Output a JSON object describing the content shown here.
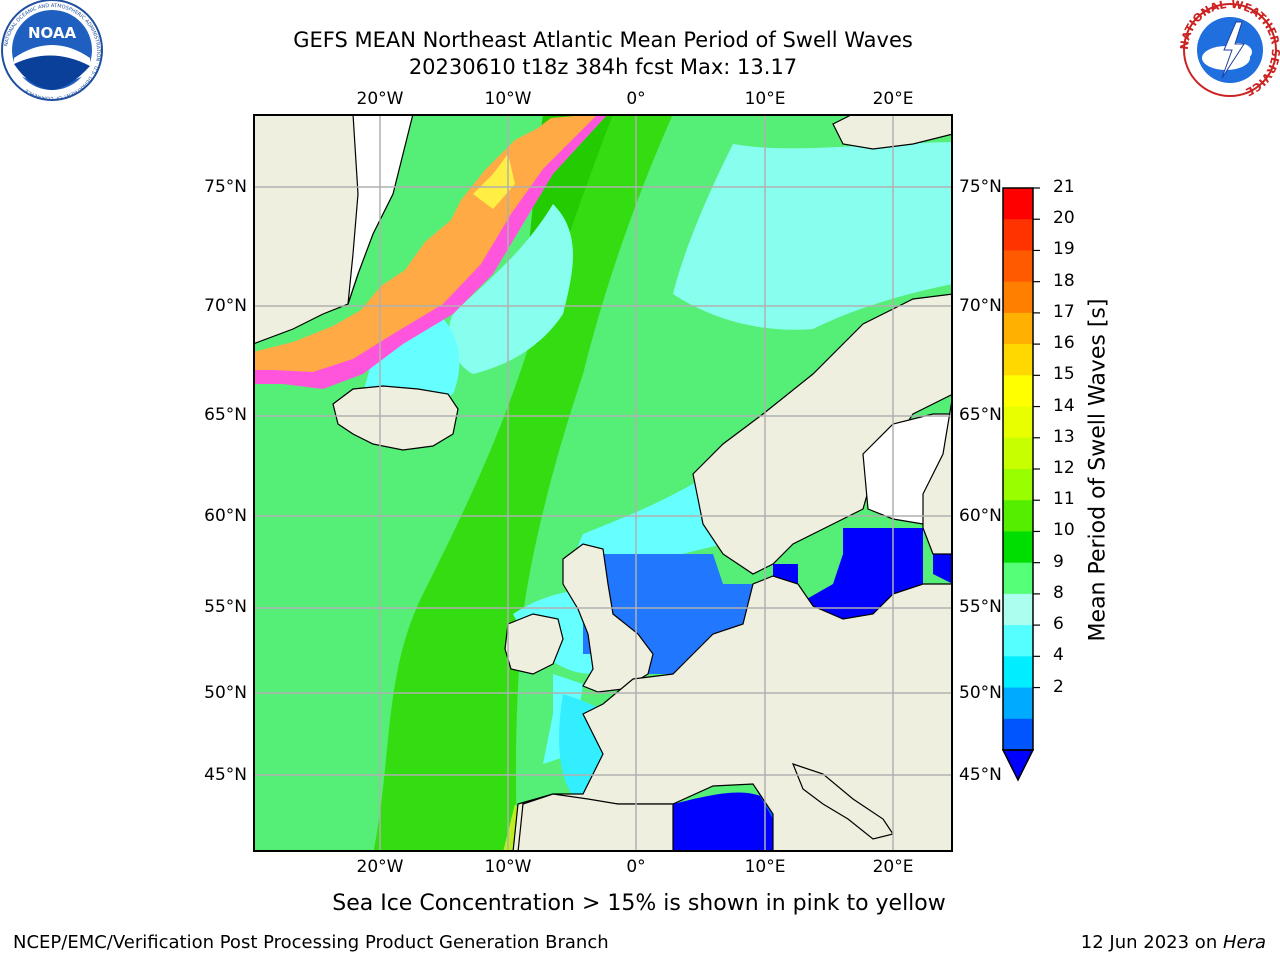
{
  "title": {
    "line1": "GEFS MEAN Northeast Atlantic Mean Period of Swell Waves",
    "line2": "20230610 t18z 384h fcst   Max: 13.17"
  },
  "logos": {
    "left_text": "NOAA",
    "left_ring_text": "NATIONAL OCEANIC AND ATMOSPHERIC ADMINISTRATION · U.S. DEPARTMENT OF COMMERCE",
    "right_ring_text": "NATIONAL WEATHER SERVICE"
  },
  "map": {
    "lon_ticks": [
      "20°W",
      "10°W",
      "0°",
      "10°E",
      "20°E"
    ],
    "lat_ticks": [
      "75°N",
      "70°N",
      "65°N",
      "60°N",
      "55°N",
      "50°N",
      "45°N"
    ]
  },
  "colorbar": {
    "label": "Mean Period of Swell Waves [s]",
    "ticks": [
      "21",
      "20",
      "19",
      "18",
      "17",
      "16",
      "15",
      "14",
      "13",
      "12",
      "11",
      "10",
      "9",
      "8",
      "6",
      "4",
      "2"
    ],
    "colors": [
      "#ff0000",
      "#ff3300",
      "#ff5a00",
      "#ff8000",
      "#ffb000",
      "#ffd800",
      "#ffff00",
      "#e8ff00",
      "#c8ff00",
      "#99ff00",
      "#55ee00",
      "#00dd00",
      "#55ff77",
      "#aaffee",
      "#55ffff",
      "#00eeff",
      "#00aaff",
      "#0055ff"
    ],
    "under_color": "#0000ff"
  },
  "colors": {
    "land": "#efefdf",
    "ice": "#ffffff",
    "ice_pink": "#ff55dd",
    "ice_orange": "#ffaa44",
    "ice_yellow": "#ffee44",
    "grid": "#b0b0b0"
  },
  "note": "Sea Ice Concentration > 15% is shown in pink to yellow",
  "footer": {
    "left": "NCEP/EMC/Verification Post Processing Product Generation Branch",
    "right_prefix": "12 Jun 2023 on ",
    "right_host": "Hera"
  }
}
